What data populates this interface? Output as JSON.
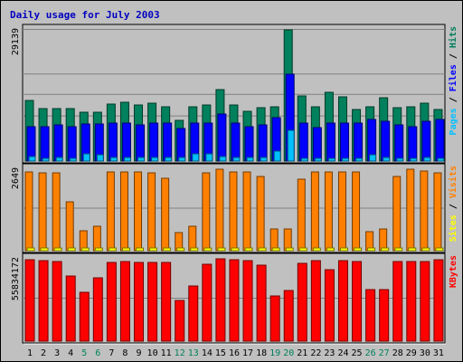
{
  "chart_data": [
    {
      "type": "bar",
      "title": "Daily usage for July 2003",
      "categories": [
        "1",
        "2",
        "3",
        "4",
        "5",
        "6",
        "7",
        "8",
        "9",
        "10",
        "11",
        "12",
        "13",
        "14",
        "15",
        "16",
        "17",
        "18",
        "19",
        "20",
        "21",
        "22",
        "23",
        "24",
        "25",
        "26",
        "27",
        "28",
        "29",
        "30",
        "31"
      ],
      "weekend_days": [
        "5",
        "6",
        "12",
        "13",
        "19",
        "20",
        "26",
        "27"
      ],
      "ymax_label": "29139",
      "ylim": [
        0,
        29139
      ],
      "side_label": {
        "parts": [
          "Pages",
          "Files",
          "Hits"
        ],
        "separator": " / "
      },
      "series": [
        {
          "name": "Hits",
          "color": "#00805c",
          "values": [
            13500,
            11600,
            11600,
            11600,
            10900,
            10900,
            12700,
            13000,
            12400,
            12800,
            12100,
            9100,
            12100,
            12500,
            15900,
            12500,
            11100,
            11900,
            12100,
            29139,
            14500,
            12000,
            15300,
            14300,
            11500,
            12100,
            14000,
            11800,
            12100,
            12900,
            11500
          ]
        },
        {
          "name": "Files",
          "color": "#0000ff",
          "values": [
            7700,
            7600,
            8000,
            7600,
            8300,
            8300,
            8400,
            8400,
            8000,
            8400,
            8400,
            7300,
            8400,
            8500,
            10500,
            8500,
            7600,
            8100,
            9700,
            19300,
            8400,
            7500,
            8500,
            8500,
            8500,
            9300,
            8900,
            8000,
            7700,
            8900,
            9200
          ]
        },
        {
          "name": "Pages",
          "color": "#00c0ff",
          "values": [
            1000,
            700,
            900,
            700,
            1600,
            1500,
            800,
            800,
            800,
            800,
            800,
            900,
            1600,
            1600,
            1000,
            900,
            800,
            800,
            2300,
            6800,
            700,
            600,
            700,
            700,
            700,
            1400,
            800,
            700,
            700,
            800,
            700
          ]
        }
      ]
    },
    {
      "type": "bar",
      "ymax_label": "2649",
      "ylim": [
        0,
        2649
      ],
      "side_label": {
        "parts": [
          "Sites",
          "Visits"
        ],
        "separator": " / "
      },
      "series": [
        {
          "name": "Visits",
          "color": "#ff8000",
          "values": [
            2550,
            2520,
            2530,
            1600,
            650,
            800,
            2550,
            2560,
            2560,
            2540,
            2340,
            600,
            800,
            2520,
            2649,
            2560,
            2550,
            2420,
            700,
            700,
            2320,
            2550,
            2550,
            2560,
            2550,
            630,
            700,
            2400,
            2649,
            2580,
            2540
          ]
        },
        {
          "name": "Sites",
          "color": "#ffff00",
          "values": [
            100,
            100,
            100,
            100,
            80,
            80,
            100,
            100,
            100,
            100,
            100,
            80,
            80,
            100,
            100,
            100,
            100,
            100,
            80,
            80,
            100,
            100,
            100,
            100,
            100,
            80,
            80,
            100,
            100,
            100,
            100
          ]
        }
      ]
    },
    {
      "type": "bar",
      "ymax_label": "55834172",
      "ylim": [
        0,
        55834172
      ],
      "side_label": {
        "parts": [
          "KBytes"
        ],
        "separator": ""
      },
      "series": [
        {
          "name": "KBytes",
          "color": "#ff0000",
          "values": [
            55300000,
            54600000,
            54100000,
            44300000,
            33000000,
            42700000,
            53500000,
            53900000,
            53100000,
            53500000,
            53400000,
            27900000,
            37200000,
            52200000,
            55834172,
            55400000,
            54700000,
            51800000,
            30500000,
            34300000,
            53000000,
            54600000,
            48400000,
            54500000,
            54000000,
            34800000,
            35000000,
            53800000,
            54200000,
            54300000,
            55000000
          ]
        }
      ]
    }
  ]
}
